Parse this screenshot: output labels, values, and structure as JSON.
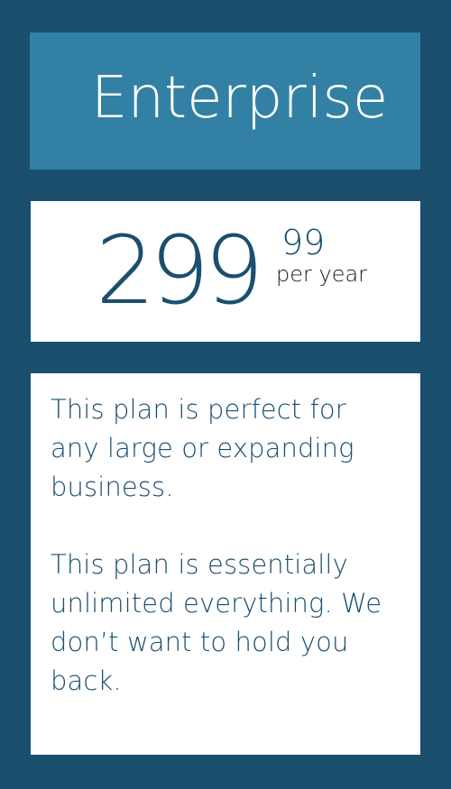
{
  "plan": {
    "name": "Enterprise",
    "price": {
      "whole": "299",
      "cents": "99",
      "period": "per year"
    },
    "description": [
      "This plan is perfect for any large or expanding business.",
      "This plan is essentially unlimited everything. We don’t want to hold you back."
    ]
  },
  "colors": {
    "background": "#1a4f6e",
    "header": "#3281a5",
    "panel": "#ffffff",
    "price_text": "#1a4f6e",
    "period_text": "#1a1a1a"
  }
}
